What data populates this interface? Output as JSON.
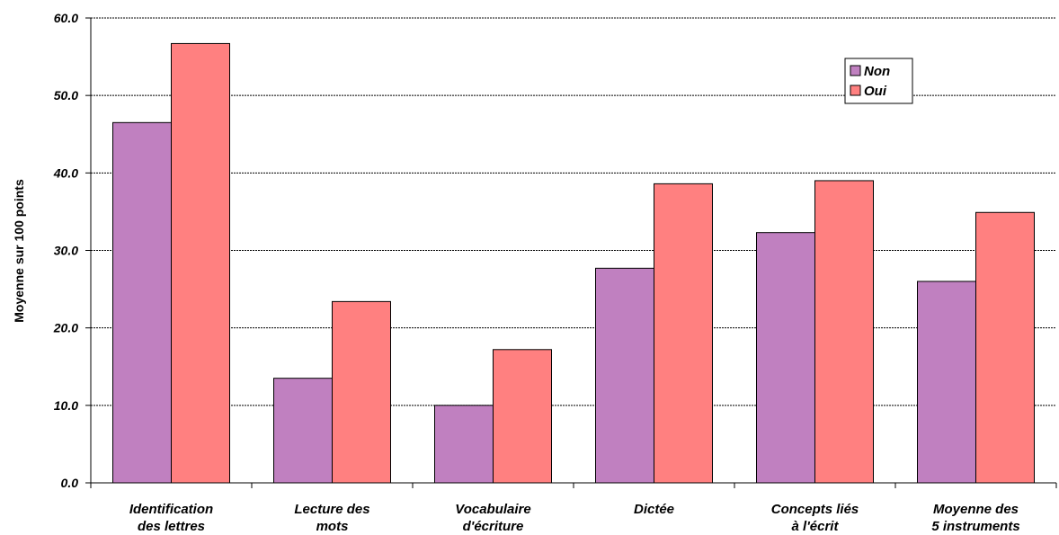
{
  "chart_data": {
    "type": "bar",
    "title": "",
    "xlabel": "",
    "ylabel": "Moyenne sur 100 points",
    "ylim": [
      0,
      60
    ],
    "yticks": [
      "0.0",
      "10.0",
      "20.0",
      "30.0",
      "40.0",
      "50.0",
      "60.0"
    ],
    "grid": true,
    "legend_position": "top-right",
    "categories": [
      [
        "Identification",
        "des lettres"
      ],
      [
        "Lecture des",
        "mots"
      ],
      [
        "Vocabulaire",
        "d'écriture"
      ],
      [
        "Dictée"
      ],
      [
        "Concepts liés",
        "à l'écrit"
      ],
      [
        "Moyenne des",
        "5 instruments"
      ]
    ],
    "series": [
      {
        "name": "Non",
        "color": "#c080c0",
        "values": [
          46.5,
          13.5,
          10.0,
          27.7,
          32.3,
          26.0
        ]
      },
      {
        "name": "Oui",
        "color": "#ff8080",
        "values": [
          56.7,
          23.4,
          17.2,
          38.6,
          39.0,
          34.9
        ]
      }
    ]
  }
}
